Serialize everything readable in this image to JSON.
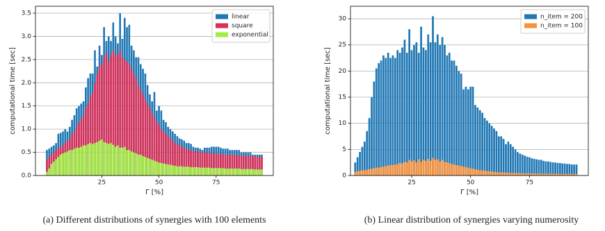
{
  "chart_data": [
    {
      "type": "bar",
      "caption": "(a) Different distributions of synergies with 100 elements",
      "xlabel": "Γ [%]",
      "ylabel": "computational time [sec]",
      "x": [
        1,
        2,
        3,
        4,
        5,
        6,
        7,
        8,
        9,
        10,
        11,
        12,
        13,
        14,
        15,
        16,
        17,
        18,
        19,
        20,
        21,
        22,
        23,
        24,
        25,
        26,
        27,
        28,
        29,
        30,
        31,
        32,
        33,
        34,
        35,
        36,
        37,
        38,
        39,
        40,
        41,
        42,
        43,
        44,
        45,
        46,
        47,
        48,
        49,
        50,
        51,
        52,
        53,
        54,
        55,
        56,
        57,
        58,
        59,
        60,
        61,
        62,
        63,
        64,
        65,
        66,
        67,
        68,
        69,
        70,
        71,
        72,
        73,
        74,
        75,
        76,
        77,
        78,
        79,
        80,
        81,
        82,
        83,
        84,
        85,
        86,
        87,
        88,
        89,
        90,
        91,
        92,
        93,
        94,
        95
      ],
      "series": [
        {
          "name": "linear",
          "color": "#1f77b4",
          "values": [
            0.55,
            0.58,
            0.62,
            0.65,
            0.7,
            0.9,
            0.92,
            0.95,
            1.0,
            0.95,
            1.05,
            1.2,
            1.3,
            1.45,
            1.5,
            1.55,
            1.6,
            1.9,
            2.1,
            2.2,
            2.2,
            2.7,
            2.35,
            2.8,
            2.6,
            3.2,
            2.9,
            3.0,
            2.9,
            3.3,
            3.0,
            2.85,
            3.5,
            2.95,
            3.4,
            3.2,
            3.25,
            2.8,
            2.7,
            2.55,
            2.55,
            2.4,
            2.3,
            2.2,
            1.95,
            1.75,
            1.6,
            1.8,
            1.4,
            1.5,
            1.4,
            1.2,
            1.15,
            1.05,
            1.0,
            0.95,
            0.9,
            0.85,
            0.8,
            0.78,
            0.75,
            0.7,
            0.7,
            0.68,
            0.62,
            0.6,
            0.6,
            0.58,
            0.55,
            0.6,
            0.6,
            0.6,
            0.62,
            0.62,
            0.62,
            0.62,
            0.6,
            0.58,
            0.58,
            0.58,
            0.55,
            0.55,
            0.55,
            0.55,
            0.55,
            0.5,
            0.5,
            0.5,
            0.5,
            0.5,
            0.45,
            0.45,
            0.45,
            0.45,
            0.45
          ]
        },
        {
          "name": "square",
          "color": "#d93159",
          "values": [
            0.35,
            0.4,
            0.45,
            0.5,
            0.55,
            0.6,
            0.62,
            0.65,
            0.7,
            0.75,
            0.8,
            0.9,
            0.95,
            1.05,
            1.15,
            1.2,
            1.3,
            1.45,
            1.55,
            1.7,
            1.8,
            2.0,
            2.2,
            2.35,
            2.4,
            2.55,
            2.65,
            2.45,
            2.6,
            2.7,
            2.6,
            2.6,
            2.7,
            2.55,
            2.5,
            2.45,
            2.4,
            2.3,
            2.2,
            2.1,
            1.95,
            1.85,
            1.75,
            1.65,
            1.55,
            1.45,
            1.35,
            1.25,
            1.15,
            1.1,
            1.0,
            0.95,
            0.9,
            0.85,
            0.8,
            0.75,
            0.7,
            0.68,
            0.65,
            0.62,
            0.6,
            0.58,
            0.55,
            0.55,
            0.53,
            0.52,
            0.52,
            0.5,
            0.5,
            0.5,
            0.5,
            0.48,
            0.48,
            0.48,
            0.47,
            0.47,
            0.46,
            0.46,
            0.45,
            0.45,
            0.45,
            0.45,
            0.44,
            0.44,
            0.43,
            0.43,
            0.43,
            0.42,
            0.42,
            0.42,
            0.41,
            0.41,
            0.4,
            0.4,
            0.4
          ]
        },
        {
          "name": "exponential",
          "color": "#a4ec45",
          "values": [
            0.08,
            0.15,
            0.25,
            0.3,
            0.35,
            0.4,
            0.45,
            0.48,
            0.5,
            0.52,
            0.55,
            0.55,
            0.58,
            0.6,
            0.6,
            0.62,
            0.65,
            0.65,
            0.68,
            0.7,
            0.68,
            0.7,
            0.72,
            0.75,
            0.78,
            0.72,
            0.7,
            0.68,
            0.7,
            0.66,
            0.62,
            0.65,
            0.6,
            0.6,
            0.62,
            0.55,
            0.55,
            0.52,
            0.5,
            0.48,
            0.45,
            0.45,
            0.42,
            0.4,
            0.38,
            0.36,
            0.34,
            0.32,
            0.3,
            0.28,
            0.27,
            0.26,
            0.25,
            0.24,
            0.23,
            0.22,
            0.21,
            0.2,
            0.2,
            0.2,
            0.19,
            0.19,
            0.19,
            0.18,
            0.18,
            0.18,
            0.18,
            0.17,
            0.17,
            0.17,
            0.17,
            0.17,
            0.16,
            0.16,
            0.16,
            0.16,
            0.16,
            0.16,
            0.15,
            0.15,
            0.15,
            0.15,
            0.15,
            0.15,
            0.15,
            0.14,
            0.14,
            0.14,
            0.14,
            0.14,
            0.14,
            0.13,
            0.13,
            0.13,
            0.13
          ]
        }
      ],
      "xlim": [
        -4,
        100
      ],
      "xticks": [
        25,
        50,
        75
      ],
      "ylim": [
        0,
        3.65
      ],
      "yticks": [
        {
          "value": 0,
          "label": "0.0"
        },
        0.5,
        {
          "value": 1,
          "label": "1.0"
        },
        1.5,
        {
          "value": 2,
          "label": "2.0"
        },
        2.5,
        {
          "value": 3,
          "label": "3.0"
        },
        3.5
      ],
      "grid": true,
      "legend": "upper right"
    },
    {
      "type": "bar",
      "caption": "(b) Linear distribution of synergies varying numerosity",
      "xlabel": "Γ [%]",
      "ylabel": "computational time [sec]",
      "x": [
        1,
        2,
        3,
        4,
        5,
        6,
        7,
        8,
        9,
        10,
        11,
        12,
        13,
        14,
        15,
        16,
        17,
        18,
        19,
        20,
        21,
        22,
        23,
        24,
        25,
        26,
        27,
        28,
        29,
        30,
        31,
        32,
        33,
        34,
        35,
        36,
        37,
        38,
        39,
        40,
        41,
        42,
        43,
        44,
        45,
        46,
        47,
        48,
        49,
        50,
        51,
        52,
        53,
        54,
        55,
        56,
        57,
        58,
        59,
        60,
        61,
        62,
        63,
        64,
        65,
        66,
        67,
        68,
        69,
        70,
        71,
        72,
        73,
        74,
        75,
        76,
        77,
        78,
        79,
        80,
        81,
        82,
        83,
        84,
        85,
        86,
        87,
        88,
        89,
        90,
        91,
        92,
        93,
        94,
        95
      ],
      "series": [
        {
          "name": "n_item = 200",
          "color": "#1f77b4",
          "values": [
            2.5,
            3.5,
            4.5,
            5.5,
            6.5,
            8.5,
            11,
            15,
            18,
            20.5,
            21.5,
            22,
            23,
            22.5,
            23.5,
            22.5,
            23,
            22.5,
            24,
            23.5,
            24.5,
            26,
            23.5,
            28,
            24,
            25,
            25.5,
            23.5,
            28.5,
            24.5,
            24,
            27,
            25.5,
            30.5,
            25.5,
            27,
            25,
            26.5,
            25,
            23,
            23.5,
            22,
            22,
            21,
            20,
            19.5,
            16.5,
            17,
            16.5,
            17,
            17,
            13.5,
            13,
            12.5,
            12,
            11,
            10.5,
            10,
            9.5,
            9,
            8.5,
            7.5,
            7.5,
            7,
            6,
            6.5,
            6,
            5.5,
            5,
            4.5,
            4.2,
            4,
            3.8,
            3.6,
            3.5,
            3.3,
            3.2,
            3.1,
            3,
            3,
            2.8,
            2.7,
            2.7,
            2.6,
            2.5,
            2.5,
            2.4,
            2.4,
            2.3,
            2.3,
            2.2,
            2.2,
            2.1,
            2.1,
            2.1
          ]
        },
        {
          "name": "n_item = 100",
          "color": "#f7913a",
          "values": [
            0.7,
            0.8,
            0.9,
            1,
            1,
            1.1,
            1.2,
            1.3,
            1.4,
            1.5,
            1.5,
            1.6,
            1.7,
            1.8,
            1.9,
            2,
            2,
            2.1,
            2.2,
            2.4,
            2.3,
            2.6,
            2.5,
            3,
            2.7,
            2.9,
            2.5,
            3.1,
            2.6,
            3,
            2.8,
            3.2,
            2.8,
            3.4,
            3,
            3.1,
            2.7,
            3,
            2.6,
            2.5,
            2.4,
            2.2,
            2.1,
            2,
            1.9,
            1.8,
            1.7,
            1.6,
            1.5,
            1.4,
            1.3,
            1.2,
            1.1,
            1,
            1,
            0.9,
            0.85,
            0.8,
            0.75,
            0.7,
            0.65,
            0.6,
            0.6,
            0.55,
            0.55,
            0.5,
            0.5,
            0.5,
            0.45,
            0.45,
            0.45,
            0.4,
            0.4,
            0.4,
            0.4,
            0.38,
            0.38,
            0.36,
            0.36,
            0.35,
            0.35,
            0.34,
            0.34,
            0.33,
            0.33,
            0.32,
            0.32,
            0.31,
            0.31,
            0.3,
            0.3,
            0.3,
            0.3,
            0.3,
            0.3
          ]
        }
      ],
      "xlim": [
        -1,
        100
      ],
      "xticks": [
        25,
        50,
        75
      ],
      "ylim": [
        0,
        32.4
      ],
      "yticks": [
        0,
        5,
        10,
        15,
        20,
        25,
        30
      ],
      "grid": true,
      "legend": "upper right"
    }
  ]
}
